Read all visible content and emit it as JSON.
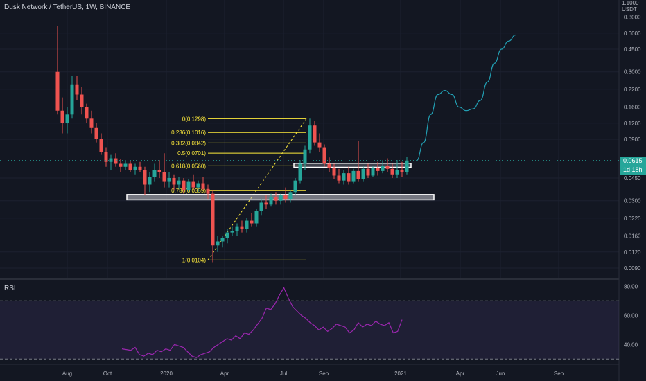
{
  "title": "Dusk Network / TetherUS, 1W, BINANCE",
  "price_axis": {
    "top_label": "1.1000",
    "currency": "USDT",
    "ticks": [
      "0.8000",
      "0.6000",
      "0.4500",
      "0.3000",
      "0.2200",
      "0.1600",
      "0.1200",
      "0.0900",
      "0.0450",
      "0.0300",
      "0.0220",
      "0.0160",
      "0.0120",
      "0.0090"
    ],
    "current_price": "0.0615",
    "countdown": "1d 18h",
    "scale": "log"
  },
  "time_axis": {
    "ticks": [
      "Aug",
      "Oct",
      "2020",
      "Apr",
      "Jul",
      "Sep",
      "2021",
      "Apr",
      "Jun",
      "Sep"
    ]
  },
  "rsi": {
    "label": "RSI",
    "ticks": [
      "80.00",
      "60.00",
      "40.00"
    ],
    "upper_band": 70,
    "lower_band": 30
  },
  "fibonacci": {
    "levels": [
      {
        "ratio": "0",
        "price": 0.1298,
        "label": "0(0.1298)"
      },
      {
        "ratio": "0.236",
        "price": 0.1016,
        "label": "0.236(0.1016)"
      },
      {
        "ratio": "0.382",
        "price": 0.0842,
        "label": "0.382(0.0842)"
      },
      {
        "ratio": "0.5",
        "price": 0.0701,
        "label": "0.5(0.0701)"
      },
      {
        "ratio": "0.618",
        "price": 0.056,
        "label": "0.618(0.0560)"
      },
      {
        "ratio": "0.786",
        "price": 0.0359,
        "label": "0.786(0.0359)"
      },
      {
        "ratio": "1",
        "price": 0.0104,
        "label": "1(0.0104)"
      }
    ]
  },
  "colors": {
    "background": "#131722",
    "up": "#26a69a",
    "down": "#ef5350",
    "fib": "#ffeb3b",
    "rsi_line": "#9c27b0",
    "rsi_band": "#7e57c2",
    "projection": "#22a0b4",
    "price_tag": "#26a69a"
  },
  "chart_data": {
    "type": "candlestick",
    "symbol": "Dusk Network / TetherUS",
    "interval": "1W",
    "exchange": "BINANCE",
    "y_scale": "log",
    "y_range": [
      0.0075,
      1.1
    ],
    "candles": [
      [
        0.3,
        0.68,
        0.14,
        0.15
      ],
      [
        0.15,
        0.19,
        0.1,
        0.12
      ],
      [
        0.12,
        0.16,
        0.1,
        0.14
      ],
      [
        0.14,
        0.28,
        0.13,
        0.24
      ],
      [
        0.24,
        0.28,
        0.18,
        0.2
      ],
      [
        0.2,
        0.23,
        0.14,
        0.16
      ],
      [
        0.16,
        0.17,
        0.12,
        0.13
      ],
      [
        0.13,
        0.15,
        0.1,
        0.11
      ],
      [
        0.11,
        0.12,
        0.085,
        0.09
      ],
      [
        0.09,
        0.1,
        0.068,
        0.072
      ],
      [
        0.072,
        0.078,
        0.055,
        0.06
      ],
      [
        0.06,
        0.068,
        0.052,
        0.064
      ],
      [
        0.064,
        0.07,
        0.055,
        0.058
      ],
      [
        0.058,
        0.063,
        0.05,
        0.055
      ],
      [
        0.055,
        0.062,
        0.052,
        0.058
      ],
      [
        0.058,
        0.061,
        0.05,
        0.052
      ],
      [
        0.052,
        0.058,
        0.048,
        0.055
      ],
      [
        0.055,
        0.06,
        0.05,
        0.052
      ],
      [
        0.052,
        0.055,
        0.033,
        0.04
      ],
      [
        0.04,
        0.05,
        0.035,
        0.046
      ],
      [
        0.046,
        0.058,
        0.042,
        0.052
      ],
      [
        0.052,
        0.062,
        0.045,
        0.05
      ],
      [
        0.05,
        0.07,
        0.038,
        0.042
      ],
      [
        0.042,
        0.05,
        0.038,
        0.045
      ],
      [
        0.045,
        0.048,
        0.036,
        0.04
      ],
      [
        0.04,
        0.046,
        0.037,
        0.043
      ],
      [
        0.043,
        0.045,
        0.034,
        0.036
      ],
      [
        0.036,
        0.044,
        0.035,
        0.042
      ],
      [
        0.042,
        0.048,
        0.036,
        0.038
      ],
      [
        0.038,
        0.043,
        0.035,
        0.041
      ],
      [
        0.041,
        0.046,
        0.036,
        0.037
      ],
      [
        0.037,
        0.04,
        0.031,
        0.034
      ],
      [
        0.034,
        0.036,
        0.01,
        0.0135
      ],
      [
        0.0135,
        0.016,
        0.012,
        0.0145
      ],
      [
        0.0145,
        0.016,
        0.013,
        0.0155
      ],
      [
        0.0155,
        0.018,
        0.014,
        0.017
      ],
      [
        0.017,
        0.019,
        0.016,
        0.0175
      ],
      [
        0.0175,
        0.02,
        0.016,
        0.019
      ],
      [
        0.019,
        0.021,
        0.017,
        0.018
      ],
      [
        0.018,
        0.022,
        0.017,
        0.021
      ],
      [
        0.021,
        0.024,
        0.019,
        0.02
      ],
      [
        0.02,
        0.026,
        0.019,
        0.025
      ],
      [
        0.025,
        0.031,
        0.023,
        0.029
      ],
      [
        0.029,
        0.033,
        0.026,
        0.028
      ],
      [
        0.028,
        0.034,
        0.027,
        0.032
      ],
      [
        0.032,
        0.035,
        0.028,
        0.03
      ],
      [
        0.03,
        0.034,
        0.028,
        0.033
      ],
      [
        0.033,
        0.038,
        0.029,
        0.031
      ],
      [
        0.031,
        0.036,
        0.029,
        0.035
      ],
      [
        0.035,
        0.045,
        0.033,
        0.043
      ],
      [
        0.043,
        0.062,
        0.041,
        0.058
      ],
      [
        0.058,
        0.08,
        0.052,
        0.075
      ],
      [
        0.075,
        0.13,
        0.07,
        0.115
      ],
      [
        0.115,
        0.125,
        0.08,
        0.085
      ],
      [
        0.085,
        0.1,
        0.072,
        0.078
      ],
      [
        0.078,
        0.082,
        0.055,
        0.058
      ],
      [
        0.058,
        0.065,
        0.05,
        0.054
      ],
      [
        0.054,
        0.058,
        0.044,
        0.047
      ],
      [
        0.047,
        0.053,
        0.041,
        0.043
      ],
      [
        0.043,
        0.052,
        0.04,
        0.049
      ],
      [
        0.049,
        0.055,
        0.04,
        0.042
      ],
      [
        0.042,
        0.053,
        0.041,
        0.051
      ],
      [
        0.051,
        0.087,
        0.042,
        0.044
      ],
      [
        0.044,
        0.056,
        0.042,
        0.053
      ],
      [
        0.053,
        0.058,
        0.045,
        0.047
      ],
      [
        0.047,
        0.056,
        0.046,
        0.054
      ],
      [
        0.054,
        0.06,
        0.047,
        0.051
      ],
      [
        0.051,
        0.062,
        0.049,
        0.056
      ],
      [
        0.056,
        0.064,
        0.05,
        0.053
      ],
      [
        0.053,
        0.058,
        0.045,
        0.048
      ],
      [
        0.048,
        0.062,
        0.045,
        0.052
      ],
      [
        0.052,
        0.06,
        0.046,
        0.05
      ],
      [
        0.05,
        0.066,
        0.048,
        0.0615
      ]
    ],
    "candle_note": "each candle is [open, high, low, close] in USDT",
    "projection_path": [
      0.0615,
      0.085,
      0.14,
      0.2,
      0.215,
      0.2,
      0.16,
      0.15,
      0.155,
      0.18,
      0.25,
      0.35,
      0.45,
      0.52,
      0.58
    ],
    "rsi_values": [
      37,
      36.5,
      36,
      38,
      33,
      32,
      34,
      33,
      36,
      35,
      37,
      36,
      40,
      39,
      38,
      35,
      32,
      31,
      33,
      34,
      35,
      38,
      40,
      42,
      44,
      43,
      46,
      44,
      48,
      47,
      50,
      54,
      58,
      65,
      64,
      68,
      74,
      79,
      72,
      66,
      63,
      60,
      58,
      55,
      53,
      50,
      52,
      49,
      51,
      54,
      53,
      52,
      48,
      50,
      55,
      52,
      54,
      53,
      56,
      54,
      53,
      55,
      48,
      49,
      57
    ],
    "support_zone": [
      0.0305,
      0.0335
    ],
    "resistance_zone": [
      0.0545,
      0.0585
    ]
  }
}
